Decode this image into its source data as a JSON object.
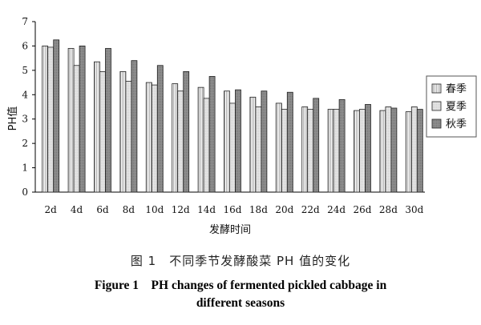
{
  "chart_data": {
    "type": "bar",
    "categories": [
      "2d",
      "4d",
      "6d",
      "8d",
      "10d",
      "12d",
      "14d",
      "16d",
      "18d",
      "20d",
      "22d",
      "24d",
      "26d",
      "28d",
      "30d"
    ],
    "series": [
      {
        "name": "春季",
        "color": "#ffffff",
        "pattern": "vertical-lines",
        "values": [
          6.0,
          5.9,
          5.35,
          4.95,
          4.5,
          4.45,
          4.3,
          4.15,
          3.9,
          3.65,
          3.5,
          3.4,
          3.35,
          3.35,
          3.3
        ]
      },
      {
        "name": "夏季",
        "color": "#e6e6e6",
        "pattern": "light",
        "values": [
          5.95,
          5.2,
          4.95,
          4.55,
          4.4,
          4.15,
          3.85,
          3.65,
          3.5,
          3.4,
          3.4,
          3.4,
          3.4,
          3.5,
          3.5
        ]
      },
      {
        "name": "秋季",
        "color": "#8a8a8a",
        "pattern": "dark",
        "values": [
          6.25,
          6.0,
          5.9,
          5.4,
          5.2,
          4.95,
          4.75,
          4.2,
          4.15,
          4.1,
          3.85,
          3.8,
          3.6,
          3.45,
          3.4
        ]
      }
    ],
    "xlabel": "发酵时间",
    "ylabel": "PH值",
    "ylim": [
      0,
      7
    ],
    "yticks": [
      0,
      1,
      2,
      3,
      4,
      5,
      6,
      7
    ],
    "grid": false,
    "legend_position": "right"
  },
  "caption": {
    "cn": "图 1　不同季节发酵酸菜 PH 值的变化",
    "en_line1": "Figure 1　PH changes of fermented pickled cabbage in",
    "en_line2": "different seasons"
  }
}
